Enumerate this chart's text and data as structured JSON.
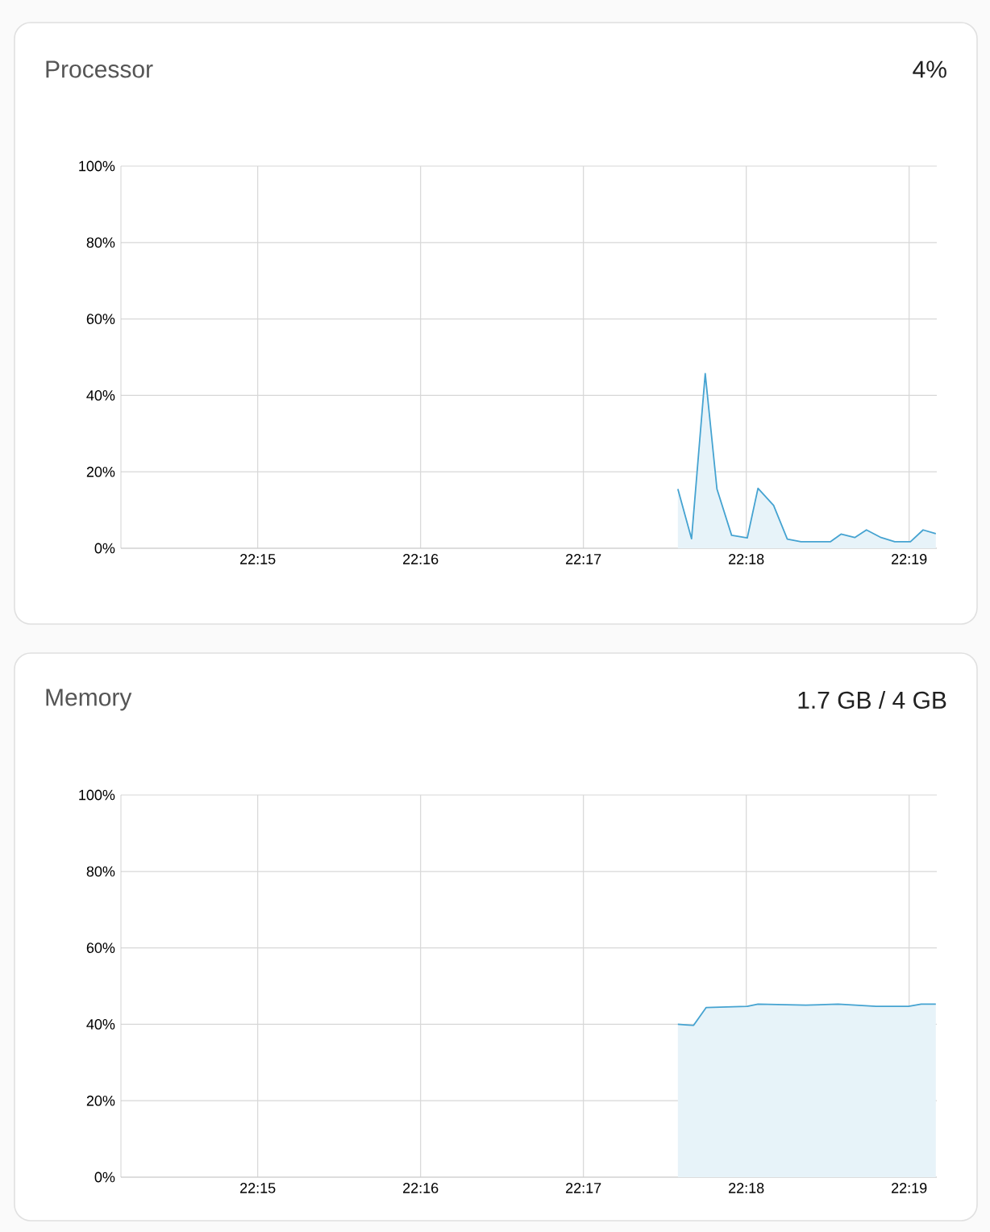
{
  "chart_data": [
    {
      "type": "area",
      "title": "Processor",
      "subtitle": "4%",
      "x": [
        22.293,
        22.2944,
        22.2958,
        22.297,
        22.2985,
        22.3001,
        22.3012,
        22.3028,
        22.3042,
        22.3056,
        22.3086,
        22.3097,
        22.3111,
        22.3123,
        22.3138,
        22.3152,
        22.3168,
        22.3181,
        22.3194
      ],
      "series": [
        {
          "color": "#45a3d1",
          "values": [
            15.5,
            2.5,
            45.7,
            15.5,
            3.4,
            2.7,
            15.7,
            11.2,
            2.4,
            1.7,
            1.7,
            3.7,
            2.8,
            4.8,
            2.8,
            1.7,
            1.7,
            4.8,
            3.8
          ]
        }
      ],
      "xlim": [
        22.236,
        22.3195
      ],
      "xticks": [
        {
          "value": 22.25,
          "label": "22:15"
        },
        {
          "value": 22.266667,
          "label": "22:16"
        },
        {
          "value": 22.283333,
          "label": "22:17"
        },
        {
          "value": 22.3,
          "label": "22:18"
        },
        {
          "value": 22.316667,
          "label": "22:19"
        }
      ],
      "ylim": [
        0,
        100
      ],
      "yticks": [
        {
          "value": 0,
          "label": "0%"
        },
        {
          "value": 20,
          "label": "20%"
        },
        {
          "value": 40,
          "label": "40%"
        },
        {
          "value": 60,
          "label": "60%"
        },
        {
          "value": 80,
          "label": "80%"
        },
        {
          "value": 100,
          "label": "100%"
        }
      ],
      "grid": true,
      "marker": "none",
      "line_style": "solid"
    },
    {
      "type": "area",
      "title": "Memory",
      "subtitle": "1.7 GB / 4 GB",
      "x": [
        22.293,
        22.2946,
        22.2959,
        22.3001,
        22.3012,
        22.3061,
        22.3094,
        22.3133,
        22.3166,
        22.3179,
        22.3194
      ],
      "series": [
        {
          "color": "#45a3d1",
          "values": [
            40.0,
            39.7,
            44.4,
            44.7,
            45.3,
            45.0,
            45.3,
            44.7,
            44.7,
            45.3,
            45.3
          ]
        }
      ],
      "xlim": [
        22.236,
        22.3195
      ],
      "xticks": [
        {
          "value": 22.25,
          "label": "22:15"
        },
        {
          "value": 22.266667,
          "label": "22:16"
        },
        {
          "value": 22.283333,
          "label": "22:17"
        },
        {
          "value": 22.3,
          "label": "22:18"
        },
        {
          "value": 22.316667,
          "label": "22:19"
        }
      ],
      "ylim": [
        0,
        100
      ],
      "yticks": [
        {
          "value": 0,
          "label": "0%"
        },
        {
          "value": 20,
          "label": "20%"
        },
        {
          "value": 40,
          "label": "40%"
        },
        {
          "value": 60,
          "label": "60%"
        },
        {
          "value": 80,
          "label": "80%"
        },
        {
          "value": 100,
          "label": "100%"
        }
      ],
      "grid": true,
      "marker": "none",
      "line_style": "solid"
    }
  ]
}
